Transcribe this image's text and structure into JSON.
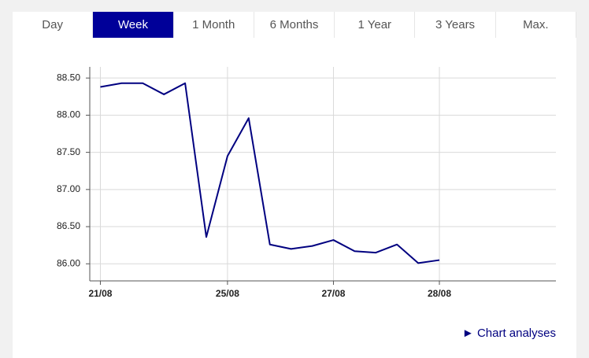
{
  "tabs": [
    "Day",
    "Week",
    "1 Month",
    "6 Months",
    "1 Year",
    "3 Years",
    "Max."
  ],
  "active_tab": 1,
  "link": "Chart analyses",
  "chart_data": {
    "type": "line",
    "categories": [
      "21/08",
      null,
      null,
      null,
      null,
      null,
      "25/08",
      null,
      null,
      null,
      null,
      "27/08",
      null,
      null,
      null,
      null,
      "28/08",
      null,
      null,
      null,
      null,
      null
    ],
    "series": [
      {
        "color": "#000080",
        "values": [
          88.38,
          88.43,
          88.43,
          88.28,
          88.43,
          86.36,
          87.45,
          87.96,
          86.26,
          86.2,
          86.24,
          86.32,
          86.17,
          86.15,
          86.26,
          86.01,
          86.05,
          null,
          null,
          null,
          null,
          null
        ]
      }
    ],
    "ylim": [
      85.77,
      88.65
    ],
    "yticks": [
      {
        "value": 86,
        "label": "86.00"
      },
      {
        "value": 86.5,
        "label": "86.50"
      },
      {
        "value": 87,
        "label": "87.00"
      },
      {
        "value": 87.5,
        "label": "87.50"
      },
      {
        "value": 88,
        "label": "88.00"
      },
      {
        "value": 88.5,
        "label": "88.50"
      }
    ],
    "grid": true
  }
}
